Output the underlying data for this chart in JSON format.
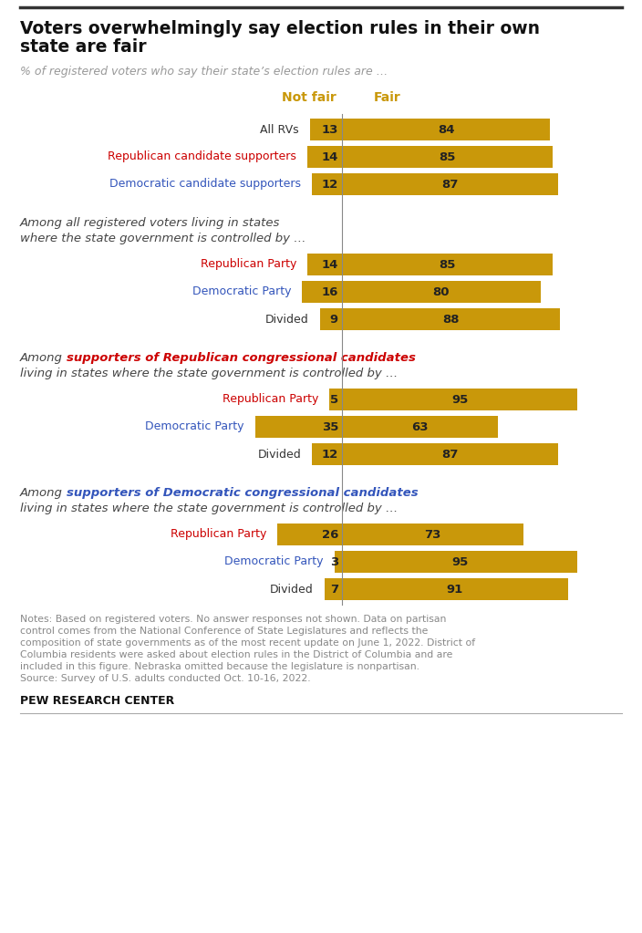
{
  "title_line1": "Voters overwhelmingly say election rules in their own",
  "title_line2": "state are fair",
  "subtitle": "% of registered voters who say their state’s election rules are …",
  "col_not_fair": "Not fair",
  "col_fair": "Fair",
  "gold_dark": "#C9980A",
  "gold_light": "#D4A017",
  "sections": [
    {
      "header_lines": null,
      "rows": [
        {
          "label": "All RVs",
          "label_color": "#333333",
          "not_fair": 13,
          "fair": 84
        },
        {
          "label": "Republican candidate supporters",
          "label_color": "#cc0000",
          "not_fair": 14,
          "fair": 85
        },
        {
          "label": "Democratic candidate supporters",
          "label_color": "#3355bb",
          "not_fair": 12,
          "fair": 87
        }
      ]
    },
    {
      "header_lines": [
        [
          {
            "text": "Among all registered voters living in states",
            "color": "#444444",
            "bold": false
          }
        ],
        [
          {
            "text": "where the state government is controlled by …",
            "color": "#444444",
            "bold": false
          }
        ]
      ],
      "rows": [
        {
          "label": "Republican Party",
          "label_color": "#cc0000",
          "not_fair": 14,
          "fair": 85
        },
        {
          "label": "Democratic Party",
          "label_color": "#3355bb",
          "not_fair": 16,
          "fair": 80
        },
        {
          "label": "Divided",
          "label_color": "#333333",
          "not_fair": 9,
          "fair": 88
        }
      ]
    },
    {
      "header_lines": [
        [
          {
            "text": "Among ",
            "color": "#444444",
            "bold": false
          },
          {
            "text": "supporters of Republican congressional candidates",
            "color": "#cc0000",
            "bold": true
          }
        ],
        [
          {
            "text": "living in states where the state government is controlled by …",
            "color": "#444444",
            "bold": false
          }
        ]
      ],
      "rows": [
        {
          "label": "Republican Party",
          "label_color": "#cc0000",
          "not_fair": 5,
          "fair": 95
        },
        {
          "label": "Democratic Party",
          "label_color": "#3355bb",
          "not_fair": 35,
          "fair": 63
        },
        {
          "label": "Divided",
          "label_color": "#333333",
          "not_fair": 12,
          "fair": 87
        }
      ]
    },
    {
      "header_lines": [
        [
          {
            "text": "Among ",
            "color": "#444444",
            "bold": false
          },
          {
            "text": "supporters of Democratic congressional candidates",
            "color": "#3355bb",
            "bold": true
          }
        ],
        [
          {
            "text": "living in states where the state government is controlled by …",
            "color": "#444444",
            "bold": false
          }
        ]
      ],
      "rows": [
        {
          "label": "Republican Party",
          "label_color": "#cc0000",
          "not_fair": 26,
          "fair": 73
        },
        {
          "label": "Democratic Party",
          "label_color": "#3355bb",
          "not_fair": 3,
          "fair": 95
        },
        {
          "label": "Divided",
          "label_color": "#333333",
          "not_fair": 7,
          "fair": 91
        }
      ]
    }
  ],
  "notes": "Notes: Based on registered voters. No answer responses not shown. Data on partisan\ncontrol comes from the National Conference of State Legislatures and reflects the\ncomposition of state governments as of the most recent update on June 1, 2022. District of\nColumbia residents were asked about election rules in the District of Columbia and are\nincluded in this figure. Nebraska omitted because the legislature is nonpartisan.\nSource: Survey of U.S. adults conducted Oct. 10-16, 2022.",
  "footer": "PEW RESEARCH CENTER"
}
